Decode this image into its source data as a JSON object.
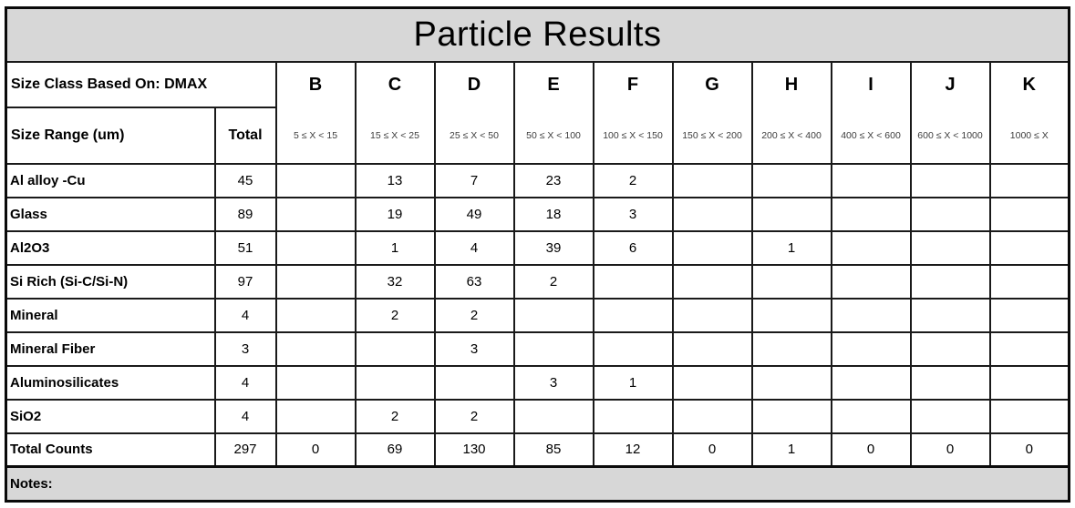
{
  "title": "Particle Results",
  "colors": {
    "header_bg": "#d7d7d7",
    "border": "#1a1a1a",
    "text": "#000000"
  },
  "header": {
    "size_class_label": "Size Class Based On: DMAX",
    "size_range_label": "Size Range (um)",
    "total_label": "Total",
    "classes": [
      {
        "letter": "B",
        "range": "5 ≤ X < 15"
      },
      {
        "letter": "C",
        "range": "15 ≤ X < 25"
      },
      {
        "letter": "D",
        "range": "25 ≤ X < 50"
      },
      {
        "letter": "E",
        "range": "50 ≤ X < 100"
      },
      {
        "letter": "F",
        "range": "100 ≤ X < 150"
      },
      {
        "letter": "G",
        "range": "150 ≤ X < 200"
      },
      {
        "letter": "H",
        "range": "200 ≤ X < 400"
      },
      {
        "letter": "I",
        "range": "400 ≤ X < 600"
      },
      {
        "letter": "J",
        "range": "600 ≤ X < 1000"
      },
      {
        "letter": "K",
        "range": "1000 ≤ X"
      }
    ]
  },
  "rows": [
    {
      "name": "Al alloy -Cu",
      "total": "45",
      "values": [
        "",
        "13",
        "7",
        "23",
        "2",
        "",
        "",
        "",
        "",
        ""
      ]
    },
    {
      "name": "Glass",
      "total": "89",
      "values": [
        "",
        "19",
        "49",
        "18",
        "3",
        "",
        "",
        "",
        "",
        ""
      ]
    },
    {
      "name": "Al2O3",
      "total": "51",
      "values": [
        "",
        "1",
        "4",
        "39",
        "6",
        "",
        "1",
        "",
        "",
        ""
      ]
    },
    {
      "name": "Si Rich (Si-C/Si-N)",
      "total": "97",
      "values": [
        "",
        "32",
        "63",
        "2",
        "",
        "",
        "",
        "",
        "",
        ""
      ]
    },
    {
      "name": "Mineral",
      "total": "4",
      "values": [
        "",
        "2",
        "2",
        "",
        "",
        "",
        "",
        "",
        "",
        ""
      ]
    },
    {
      "name": "Mineral Fiber",
      "total": "3",
      "values": [
        "",
        "",
        "3",
        "",
        "",
        "",
        "",
        "",
        "",
        ""
      ]
    },
    {
      "name": "Aluminosilicates",
      "total": "4",
      "values": [
        "",
        "",
        "",
        "3",
        "1",
        "",
        "",
        "",
        "",
        ""
      ]
    },
    {
      "name": "SiO2",
      "total": "4",
      "values": [
        "",
        "2",
        "2",
        "",
        "",
        "",
        "",
        "",
        "",
        ""
      ]
    }
  ],
  "totals_row": {
    "name": "Total Counts",
    "total": "297",
    "values": [
      "0",
      "69",
      "130",
      "85",
      "12",
      "0",
      "1",
      "0",
      "0",
      "0"
    ]
  },
  "notes_label": "Notes:"
}
